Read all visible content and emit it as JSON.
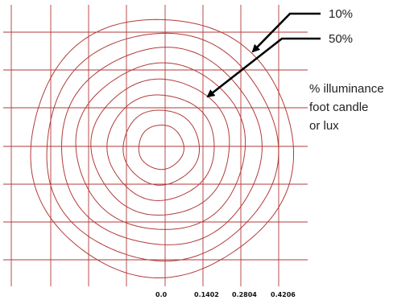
{
  "chart_data": {
    "type": "contour",
    "contour_levels_count": 8,
    "grid": true,
    "line_color": "#b23a3a",
    "grid_color": "#b23a3a",
    "text_color": "#222222",
    "x_ticks": [
      "0.0",
      "0.1402",
      "0.2804",
      "0.4206"
    ],
    "callouts": [
      {
        "label": "10%",
        "target": "outer contour"
      },
      {
        "label": "50%",
        "target": "middle contour"
      }
    ],
    "info_lines": [
      "% illuminance",
      "foot candle",
      "or lux"
    ]
  }
}
